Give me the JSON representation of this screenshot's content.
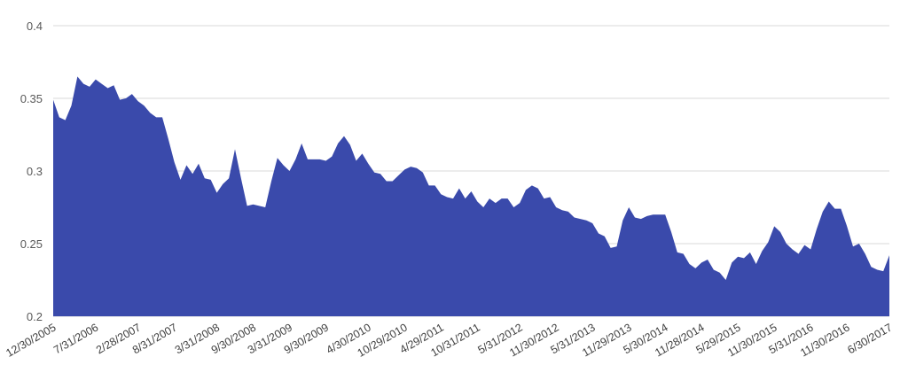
{
  "chart_data": {
    "type": "area",
    "title": "",
    "xlabel": "",
    "ylabel": "",
    "ylim": [
      0.2,
      0.4
    ],
    "yticks": [
      "0.2",
      "0.25",
      "0.3",
      "0.35",
      "0.4"
    ],
    "grid": true,
    "legend": null,
    "color": "#3a4aab",
    "x_tick_labels": [
      "12/30/2005",
      "7/31/2006",
      "2/28/2007",
      "8/31/2007",
      "3/31/2008",
      "9/30/2008",
      "3/31/2009",
      "9/30/2009",
      "4/30/2010",
      "10/29/2010",
      "4/29/2011",
      "10/31/2011",
      "5/31/2012",
      "11/30/2012",
      "5/31/2013",
      "11/29/2013",
      "5/30/2014",
      "11/28/2014",
      "5/29/2015",
      "11/30/2015",
      "5/31/2016",
      "11/30/2016",
      "6/30/2017"
    ],
    "x_tick_index": [
      0,
      7,
      14,
      20,
      27,
      33,
      39,
      45,
      52,
      58,
      64,
      70,
      77,
      83,
      89,
      95,
      101,
      107,
      113,
      119,
      125,
      131,
      138
    ],
    "values": [
      0.349,
      0.337,
      0.335,
      0.345,
      0.365,
      0.36,
      0.358,
      0.363,
      0.36,
      0.357,
      0.359,
      0.349,
      0.35,
      0.353,
      0.348,
      0.345,
      0.34,
      0.337,
      0.337,
      0.322,
      0.306,
      0.294,
      0.304,
      0.298,
      0.305,
      0.295,
      0.294,
      0.285,
      0.291,
      0.295,
      0.315,
      0.295,
      0.276,
      0.277,
      0.276,
      0.275,
      0.293,
      0.309,
      0.304,
      0.3,
      0.308,
      0.319,
      0.308,
      0.308,
      0.308,
      0.307,
      0.31,
      0.319,
      0.324,
      0.318,
      0.307,
      0.312,
      0.305,
      0.299,
      0.298,
      0.293,
      0.293,
      0.297,
      0.301,
      0.303,
      0.302,
      0.299,
      0.29,
      0.29,
      0.284,
      0.282,
      0.281,
      0.288,
      0.281,
      0.286,
      0.279,
      0.275,
      0.281,
      0.278,
      0.281,
      0.281,
      0.275,
      0.278,
      0.287,
      0.29,
      0.288,
      0.281,
      0.282,
      0.275,
      0.273,
      0.272,
      0.268,
      0.267,
      0.266,
      0.264,
      0.257,
      0.255,
      0.247,
      0.248,
      0.266,
      0.275,
      0.268,
      0.267,
      0.269,
      0.27,
      0.27,
      0.27,
      0.258,
      0.244,
      0.243,
      0.236,
      0.233,
      0.237,
      0.239,
      0.232,
      0.23,
      0.225,
      0.237,
      0.241,
      0.24,
      0.244,
      0.236,
      0.245,
      0.251,
      0.262,
      0.258,
      0.25,
      0.246,
      0.243,
      0.249,
      0.246,
      0.26,
      0.272,
      0.279,
      0.274,
      0.274,
      0.262,
      0.248,
      0.25,
      0.243,
      0.234,
      0.232,
      0.231,
      0.242
    ]
  }
}
